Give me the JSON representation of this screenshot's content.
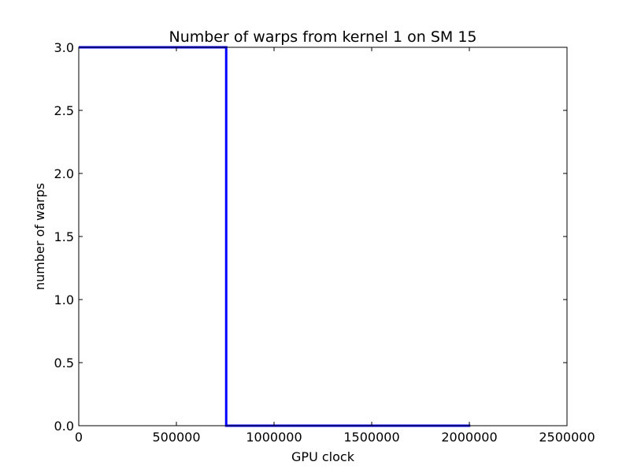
{
  "chart_data": {
    "type": "line",
    "title": "Number of warps from kernel 1 on SM 15",
    "xlabel": "GPU clock",
    "ylabel": "number of warps",
    "xlim": [
      0,
      2500000
    ],
    "ylim": [
      0,
      3
    ],
    "xticks": [
      0,
      500000,
      1000000,
      1500000,
      2000000,
      2500000
    ],
    "xtick_labels": [
      "0",
      "500000",
      "1000000",
      "1500000",
      "2000000",
      "2500000"
    ],
    "yticks": [
      0,
      0.5,
      1,
      1.5,
      2,
      2.5,
      3
    ],
    "ytick_labels": [
      "0.0",
      "0.5",
      "1.0",
      "1.5",
      "2.0",
      "2.5",
      "3.0"
    ],
    "grid": false,
    "series": [
      {
        "color": "#0000ff",
        "x": [
          0,
          755000,
          755000,
          2005000
        ],
        "y": [
          3,
          3,
          0,
          0
        ]
      }
    ]
  }
}
